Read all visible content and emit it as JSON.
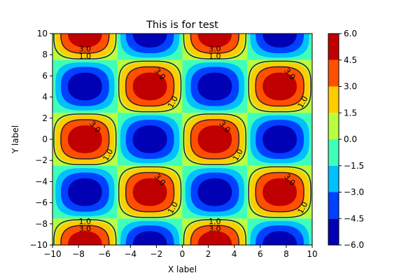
{
  "chart_data": {
    "type": "heatmap",
    "title": "This is for test",
    "xlabel": "X label",
    "ylabel": "Y label",
    "xlim": [
      -10,
      10
    ],
    "ylim": [
      -10,
      10
    ],
    "x_ticks": [
      -10,
      -8,
      -6,
      -4,
      -2,
      0,
      2,
      4,
      6,
      8,
      10
    ],
    "y_ticks": [
      -10,
      -8,
      -6,
      -4,
      -2,
      0,
      2,
      4,
      6,
      8,
      10
    ],
    "x_tick_labels": [
      "−10",
      "−8",
      "−6",
      "−4",
      "−2",
      "0",
      "2",
      "4",
      "6",
      "8",
      "10"
    ],
    "y_tick_labels": [
      "−10",
      "−8",
      "−6",
      "−4",
      "−2",
      "0",
      "2",
      "4",
      "6",
      "8",
      "10"
    ],
    "grid": false,
    "colorbar": {
      "levels": [
        -6.0,
        -4.5,
        -3.0,
        -1.5,
        0.0,
        1.5,
        3.0,
        4.5,
        6.0
      ],
      "tick_labels": [
        "−6.0",
        "−4.5",
        "−3.0",
        "−1.5",
        "0.0",
        "1.5",
        "3.0",
        "4.5",
        "6.0"
      ],
      "colors": [
        "#0000b4",
        "#0040ff",
        "#00c0ff",
        "#40ffb8",
        "#b8ff40",
        "#ffcc00",
        "#ff5000",
        "#c00000"
      ]
    },
    "field": {
      "description_of_pattern": "checkerboard of positive and negative lobes on a 5x4 grid of cells",
      "cell_centers_x": [
        -7.5,
        -2.5,
        2.5,
        7.5
      ],
      "cell_centers_y": [
        10,
        5,
        0,
        -5,
        -10
      ],
      "peak_values": [
        [
          6,
          -6,
          6,
          -6
        ],
        [
          -6,
          6,
          -6,
          6
        ],
        [
          6,
          -6,
          6,
          -6
        ],
        [
          -6,
          6,
          -6,
          6
        ],
        [
          6,
          -6,
          6,
          -6
        ]
      ]
    },
    "contour_lines": {
      "levels": [
        1.0,
        3.0
      ],
      "color": "#2a1f3d"
    },
    "contour_labels": [
      {
        "text": "3.0",
        "x": -7.5,
        "y": 8.5,
        "angle": 0
      },
      {
        "text": "1.0",
        "x": -7.5,
        "y": 7.8,
        "angle": 0
      },
      {
        "text": "3.0",
        "x": 2.5,
        "y": 8.5,
        "angle": 0
      },
      {
        "text": "1.0",
        "x": 2.5,
        "y": 7.8,
        "angle": 0
      },
      {
        "text": "3.0",
        "x": -1.75,
        "y": 6.15,
        "angle": 50
      },
      {
        "text": "1.0",
        "x": -0.7,
        "y": 3.5,
        "angle": -60
      },
      {
        "text": "3.0",
        "x": 8.25,
        "y": 6.15,
        "angle": 50
      },
      {
        "text": "1.0",
        "x": 9.3,
        "y": 3.5,
        "angle": -60
      },
      {
        "text": "3.0",
        "x": -6.75,
        "y": 1.15,
        "angle": 50
      },
      {
        "text": "1.0",
        "x": -5.7,
        "y": -1.5,
        "angle": -60
      },
      {
        "text": "3.0",
        "x": 3.25,
        "y": 1.15,
        "angle": 50
      },
      {
        "text": "1.0",
        "x": 4.3,
        "y": -1.5,
        "angle": -60
      },
      {
        "text": "3.0",
        "x": -1.75,
        "y": -3.85,
        "angle": 50
      },
      {
        "text": "1.0",
        "x": -0.7,
        "y": -6.5,
        "angle": -60
      },
      {
        "text": "3.0",
        "x": 8.25,
        "y": -3.85,
        "angle": 50
      },
      {
        "text": "1.0",
        "x": 9.3,
        "y": -6.5,
        "angle": -60
      },
      {
        "text": "1.0",
        "x": -7.5,
        "y": -7.8,
        "angle": 0
      },
      {
        "text": "3.0",
        "x": -7.5,
        "y": -8.5,
        "angle": 0
      },
      {
        "text": "1.0",
        "x": 2.5,
        "y": -7.8,
        "angle": 0
      },
      {
        "text": "3.0",
        "x": 2.5,
        "y": -8.5,
        "angle": 0
      }
    ]
  }
}
